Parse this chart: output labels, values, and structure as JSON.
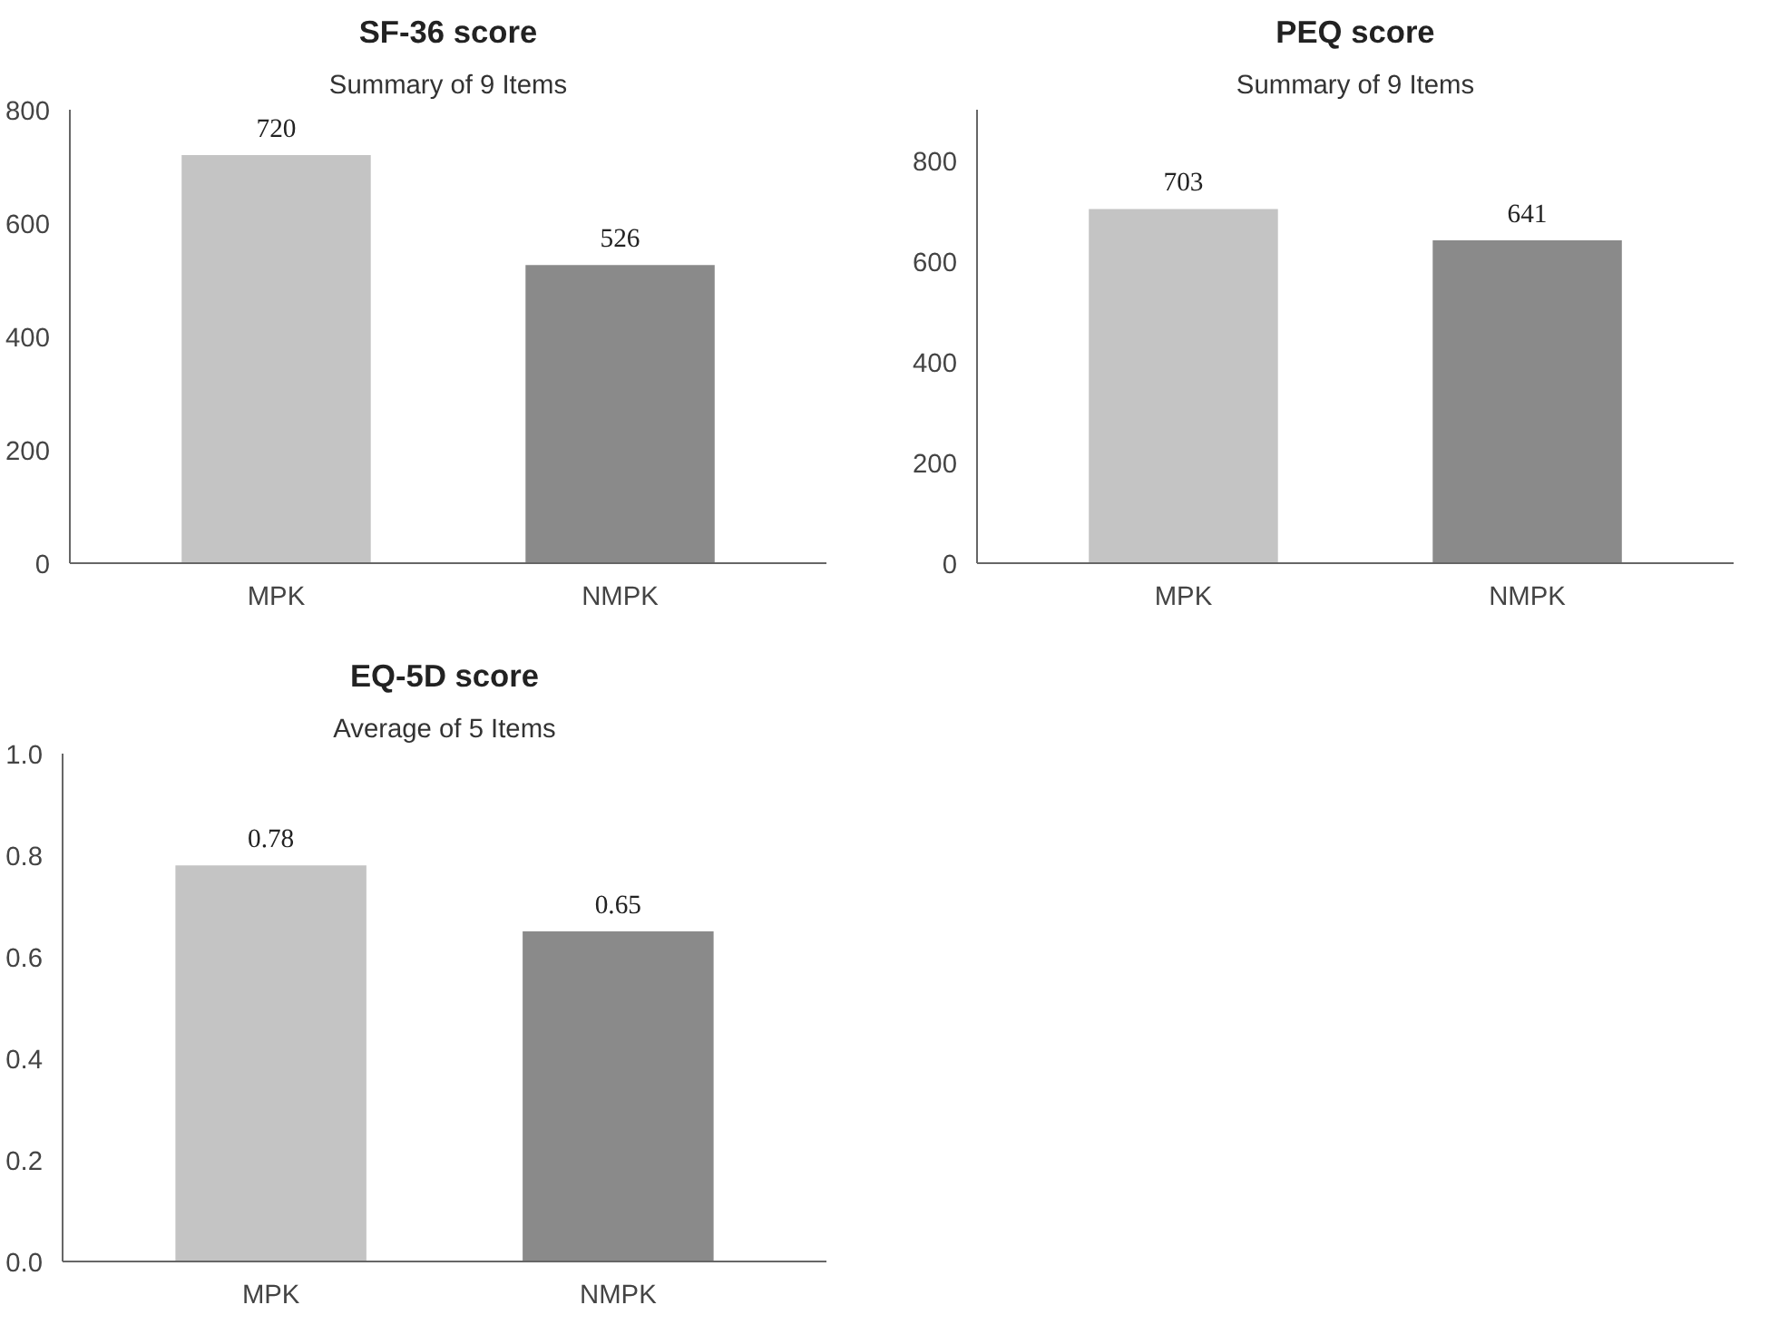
{
  "chart_data": [
    {
      "type": "bar",
      "title": "SF-36 score",
      "subtitle": "Summary of 9 Items",
      "categories": [
        "MPK",
        "NMPK"
      ],
      "values": [
        720,
        526
      ],
      "colors": [
        "#c4c4c4",
        "#8a8a8a"
      ],
      "ylim": [
        0,
        800
      ],
      "yticks": [
        0,
        200,
        400,
        600,
        800
      ],
      "data_labels": true
    },
    {
      "type": "bar",
      "title": "PEQ score",
      "subtitle": "Summary of 9 Items",
      "categories": [
        "MPK",
        "NMPK"
      ],
      "values": [
        703,
        641
      ],
      "colors": [
        "#c4c4c4",
        "#8a8a8a"
      ],
      "ylim": [
        0,
        900
      ],
      "yticks": [
        0,
        200,
        400,
        600,
        800
      ],
      "data_labels": true
    },
    {
      "type": "bar",
      "title": "EQ-5D score",
      "subtitle": "Average of 5 Items",
      "categories": [
        "MPK",
        "NMPK"
      ],
      "values": [
        0.78,
        0.65
      ],
      "colors": [
        "#c4c4c4",
        "#8a8a8a"
      ],
      "ylim": [
        0,
        1.0
      ],
      "yticks": [
        {
          "value": 0,
          "label": "0.0"
        },
        {
          "value": 0.2,
          "label": "0.2"
        },
        {
          "value": 0.4,
          "label": "0.4"
        },
        {
          "value": 0.6,
          "label": "0.6"
        },
        {
          "value": 0.8,
          "label": "0.8"
        },
        {
          "value": 1.0,
          "label": "1.0"
        }
      ],
      "data_labels": true
    }
  ]
}
